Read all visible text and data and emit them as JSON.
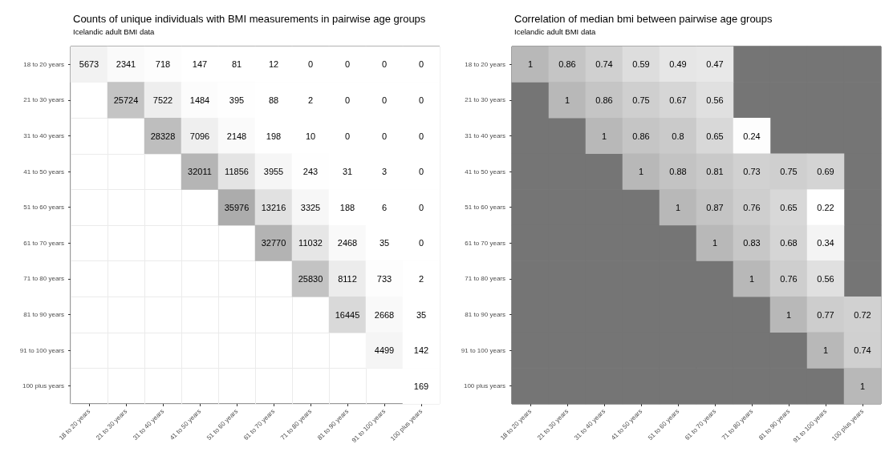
{
  "chart_data": [
    {
      "type": "heatmap",
      "title": "Counts of unique individuals with BMI measurements in pairwise age groups",
      "subtitle": "Icelandic adult BMI data",
      "categories": [
        "18 to 20 years",
        "21 to 30 years",
        "31 to 40 years",
        "41 to 50 years",
        "51 to 60 years",
        "61 to 70 years",
        "71 to 80 years",
        "81 to 90 years",
        "91 to 100 years",
        "100 plus years"
      ],
      "y_categories": [
        "18 to 20 years",
        "21 to 30 years",
        "31 to 40 years",
        "41 to 50 years",
        "51 to 60 years",
        "61 to 70 years",
        "71 to 80 years",
        "81 to 90 years",
        "91 to 100 years",
        "100 plus years"
      ],
      "cells": [
        [
          5673,
          2341,
          718,
          147,
          81,
          12,
          0,
          0,
          0,
          0
        ],
        [
          null,
          25724,
          7522,
          1484,
          395,
          88,
          2,
          0,
          0,
          0
        ],
        [
          null,
          null,
          28328,
          7096,
          2148,
          198,
          10,
          0,
          0,
          0
        ],
        [
          null,
          null,
          null,
          32011,
          11856,
          3955,
          243,
          31,
          3,
          0
        ],
        [
          null,
          null,
          null,
          null,
          35976,
          13216,
          3325,
          188,
          6,
          0
        ],
        [
          null,
          null,
          null,
          null,
          null,
          32770,
          11032,
          2468,
          35,
          0
        ],
        [
          null,
          null,
          null,
          null,
          null,
          null,
          25830,
          8112,
          733,
          2
        ],
        [
          null,
          null,
          null,
          null,
          null,
          null,
          null,
          16445,
          2668,
          35
        ],
        [
          null,
          null,
          null,
          null,
          null,
          null,
          null,
          null,
          4499,
          142
        ],
        [
          null,
          null,
          null,
          null,
          null,
          null,
          null,
          null,
          null,
          169
        ]
      ],
      "colors": [
        "#ffffff",
        "#acacac"
      ],
      "data_labels": true,
      "grid": true
    },
    {
      "type": "heatmap",
      "title": "Correlation of median bmi between pairwise age groups",
      "subtitle": "Icelandic adult BMI data",
      "categories": [
        "18 to 20 years",
        "21 to 30 years",
        "31 to 40 years",
        "41 to 50 years",
        "51 to 60 years",
        "61 to 70 years",
        "71 to 80 years",
        "81 to 90 years",
        "91 to 100 years",
        "100 plus years"
      ],
      "y_categories": [
        "18 to 20 years",
        "21 to 30 years",
        "31 to 40 years",
        "41 to 50 years",
        "51 to 60 years",
        "61 to 70 years",
        "71 to 80 years",
        "81 to 90 years",
        "91 to 100 years",
        "100 plus years"
      ],
      "cells": [
        [
          1,
          0.86,
          0.74,
          0.59,
          0.49,
          0.47,
          null,
          null,
          null,
          null
        ],
        [
          null,
          1,
          0.86,
          0.75,
          0.67,
          0.56,
          null,
          null,
          null,
          null
        ],
        [
          null,
          null,
          1,
          0.86,
          0.8,
          0.65,
          0.24,
          null,
          null,
          null
        ],
        [
          null,
          null,
          null,
          1,
          0.88,
          0.81,
          0.73,
          0.75,
          0.69,
          null
        ],
        [
          null,
          null,
          null,
          null,
          1,
          0.87,
          0.76,
          0.65,
          0.22,
          null
        ],
        [
          null,
          null,
          null,
          null,
          null,
          1,
          0.83,
          0.68,
          0.34,
          null
        ],
        [
          null,
          null,
          null,
          null,
          null,
          null,
          1,
          0.76,
          0.56,
          null
        ],
        [
          null,
          null,
          null,
          null,
          null,
          null,
          null,
          1,
          0.77,
          0.72
        ],
        [
          null,
          null,
          null,
          null,
          null,
          null,
          null,
          null,
          1,
          0.74
        ],
        [
          null,
          null,
          null,
          null,
          null,
          null,
          null,
          null,
          null,
          1
        ]
      ],
      "colors": [
        "#ffffff",
        "#b8b8b8",
        "#757575"
      ],
      "data_labels": true,
      "grid": true
    }
  ]
}
